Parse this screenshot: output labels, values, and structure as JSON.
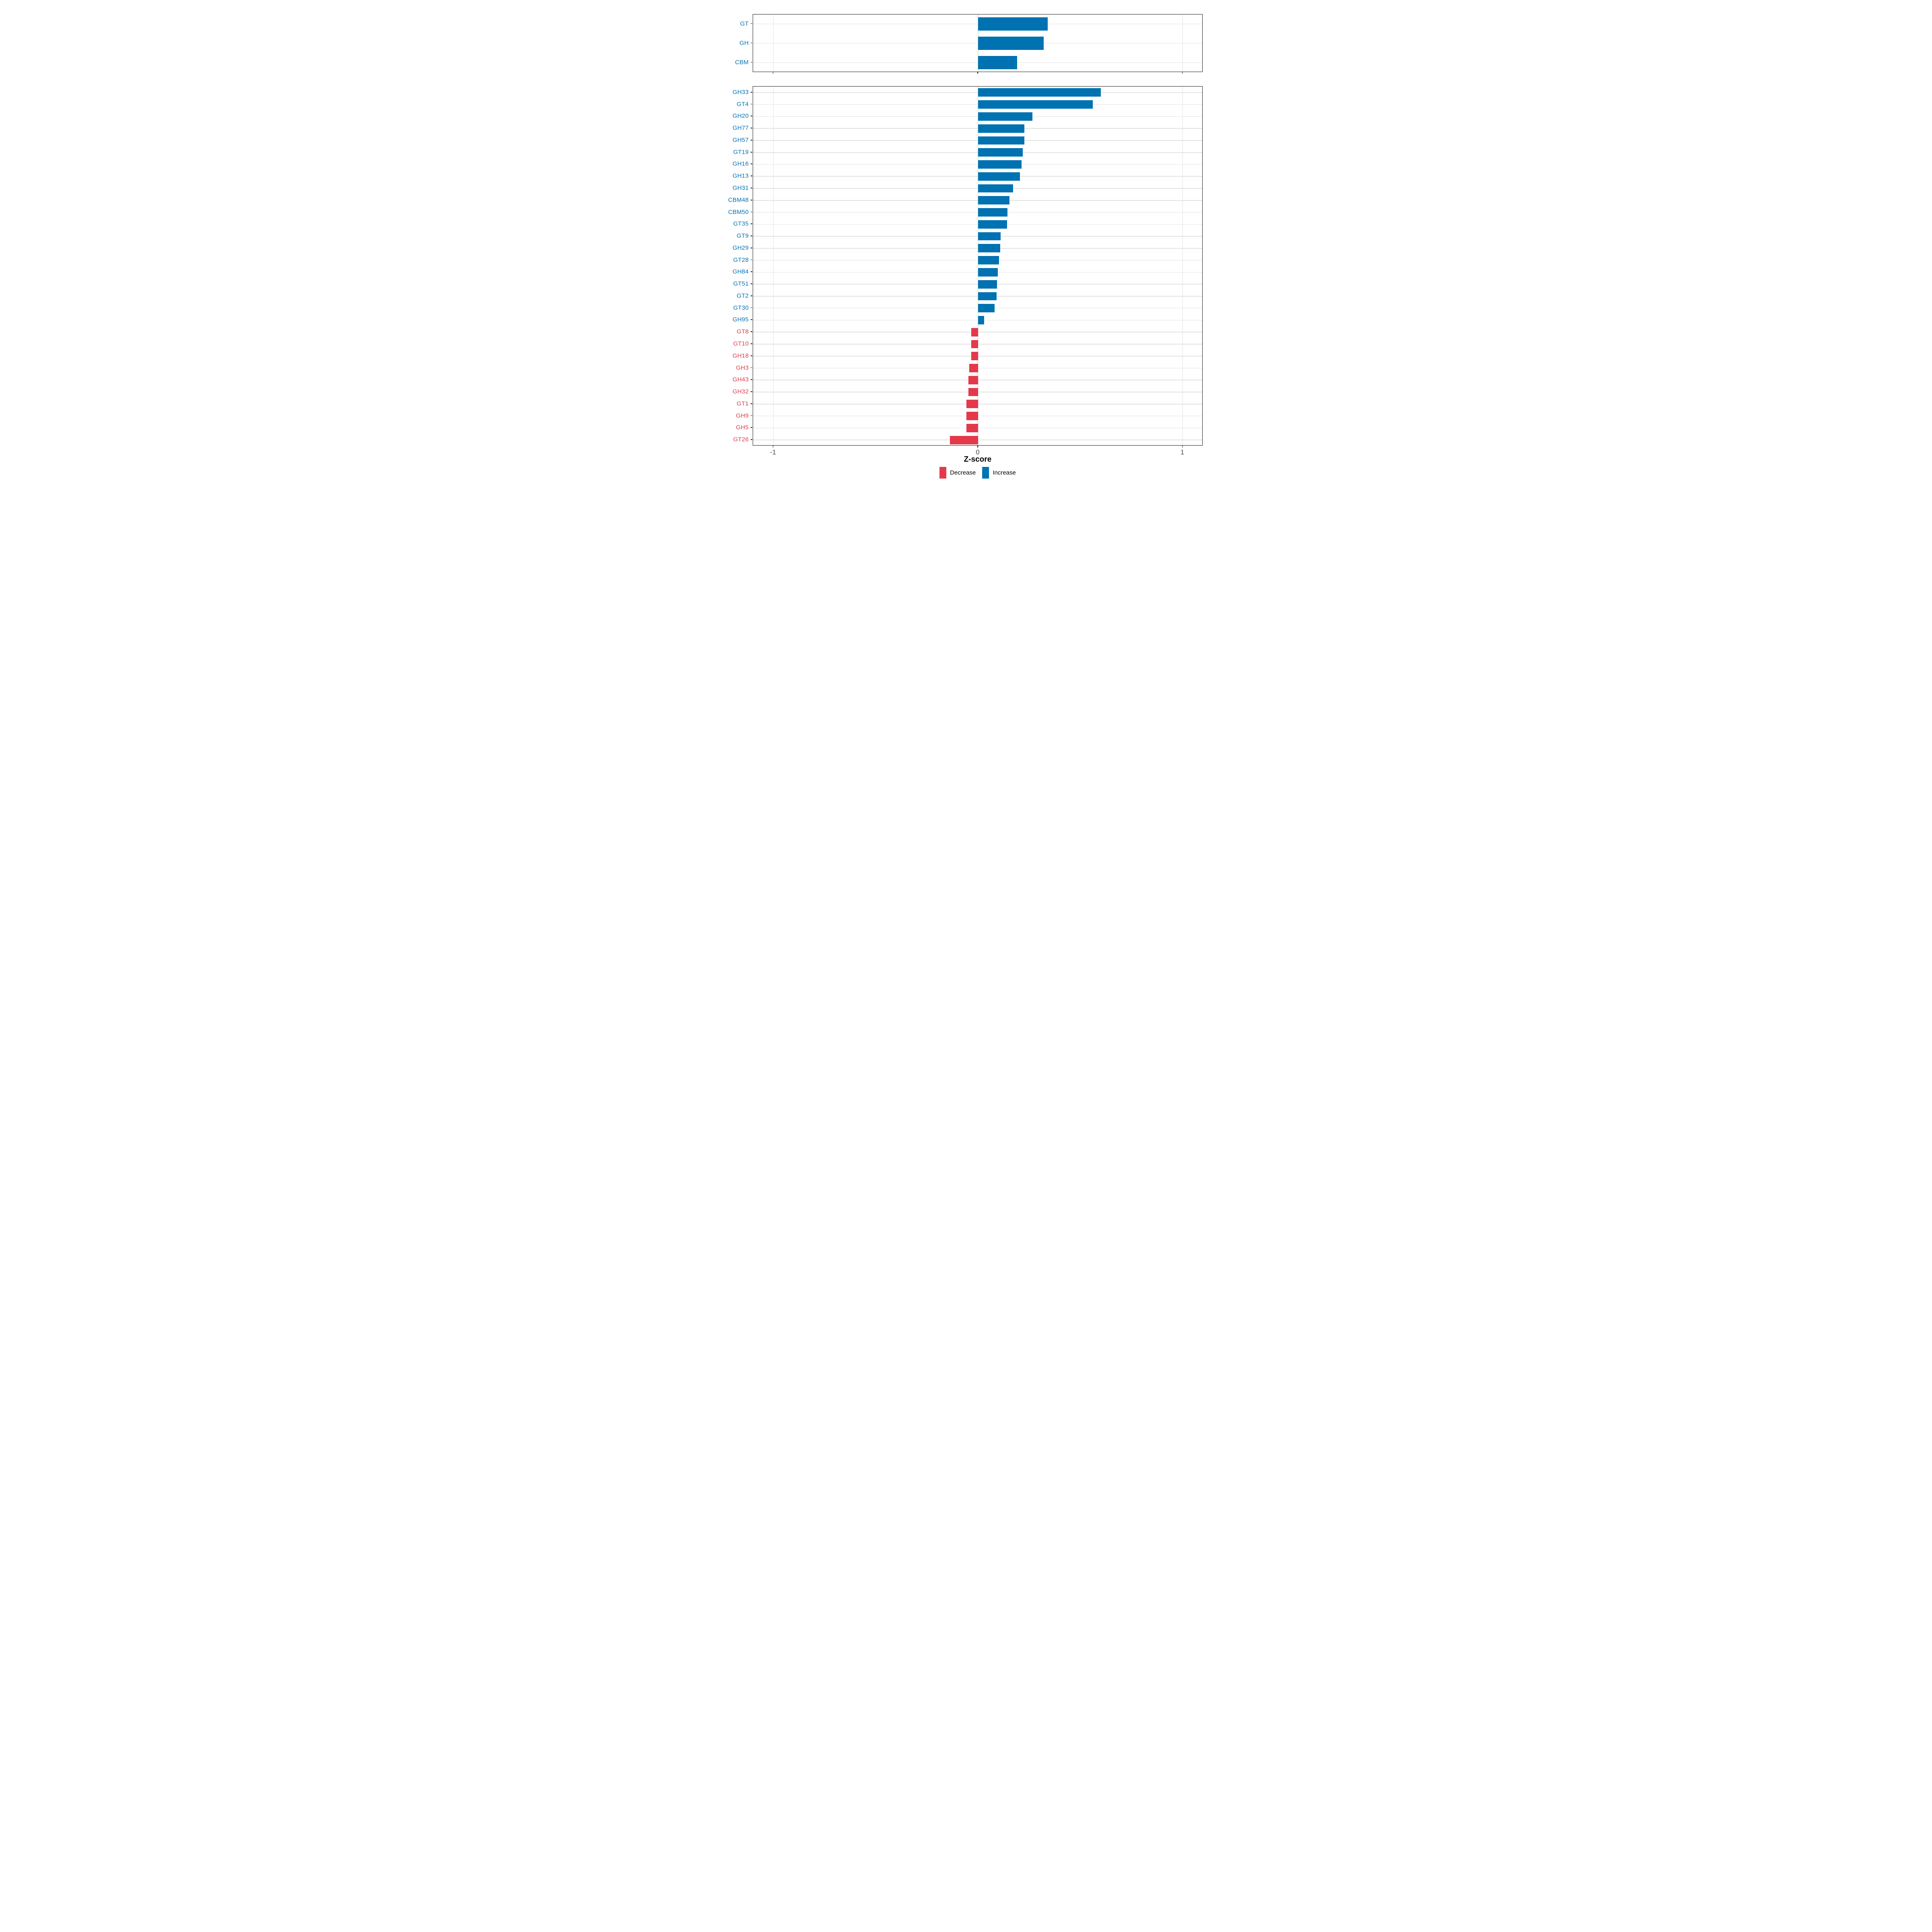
{
  "axis": {
    "title": "Z-score",
    "ticks": [
      {
        "value": -1,
        "label": "-1"
      },
      {
        "value": 0,
        "label": "0"
      },
      {
        "value": 1,
        "label": "1"
      }
    ]
  },
  "legend": {
    "items": [
      {
        "label": "Decrease",
        "color": "#e4394b"
      },
      {
        "label": "Increase",
        "color": "#0072b2"
      }
    ]
  },
  "colors": {
    "increase": "#0072b2",
    "decrease": "#e4394b",
    "grid": "#e2e2e2",
    "panel_border": "#1a1a1a",
    "tick_text": "#4d4d4d"
  },
  "chart_data": [
    {
      "type": "bar",
      "orientation": "horizontal",
      "title": "",
      "xlabel": "Z-score",
      "ylabel": "",
      "xlim": [
        -1.1,
        1.1
      ],
      "grid": true,
      "panel": "cazyme-classes",
      "categories": [
        "GT",
        "GH",
        "CBM"
      ],
      "values": [
        0.34,
        0.32,
        0.19
      ],
      "directions": [
        "Increase",
        "Increase",
        "Increase"
      ]
    },
    {
      "type": "bar",
      "orientation": "horizontal",
      "title": "",
      "xlabel": "Z-score",
      "ylabel": "",
      "xlim": [
        -1.1,
        1.1
      ],
      "grid": true,
      "legend_position": "bottom",
      "panel": "cazyme-families",
      "categories": [
        "GH33",
        "GT4",
        "GH20",
        "GH77",
        "GH57",
        "GT19",
        "GH16",
        "GH13",
        "GH31",
        "CBM48",
        "CBM50",
        "GT35",
        "GT9",
        "GH29",
        "GT28",
        "GH84",
        "GT51",
        "GT2",
        "GT30",
        "GH95",
        "GT8",
        "GT10",
        "GH18",
        "GH3",
        "GH43",
        "GH32",
        "GT1",
        "GH9",
        "GH5",
        "GT26"
      ],
      "values": [
        0.6,
        0.56,
        0.265,
        0.227,
        0.226,
        0.219,
        0.212,
        0.205,
        0.171,
        0.153,
        0.143,
        0.142,
        0.11,
        0.109,
        0.102,
        0.097,
        0.092,
        0.09,
        0.081,
        0.029,
        -0.033,
        -0.033,
        -0.033,
        -0.044,
        -0.047,
        -0.047,
        -0.058,
        -0.058,
        -0.058,
        -0.138
      ],
      "directions": [
        "Increase",
        "Increase",
        "Increase",
        "Increase",
        "Increase",
        "Increase",
        "Increase",
        "Increase",
        "Increase",
        "Increase",
        "Increase",
        "Increase",
        "Increase",
        "Increase",
        "Increase",
        "Increase",
        "Increase",
        "Increase",
        "Increase",
        "Increase",
        "Decrease",
        "Decrease",
        "Decrease",
        "Decrease",
        "Decrease",
        "Decrease",
        "Decrease",
        "Decrease",
        "Decrease",
        "Decrease"
      ]
    }
  ]
}
